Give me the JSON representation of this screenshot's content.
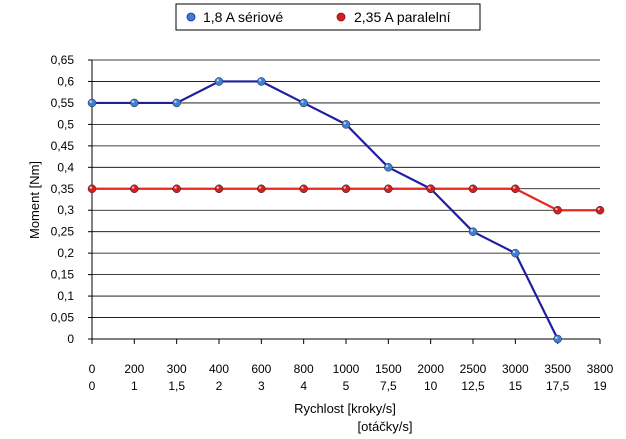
{
  "chart_data": {
    "type": "line",
    "x_labels_row1": [
      "0",
      "200",
      "300",
      "400",
      "600",
      "800",
      "1000",
      "1500",
      "2000",
      "2500",
      "3000",
      "3500",
      "3800"
    ],
    "x_labels_row2": [
      "0",
      "1",
      "1,5",
      "2",
      "3",
      "4",
      "5",
      "7,5",
      "10",
      "12,5",
      "15",
      "17,5",
      "19"
    ],
    "y_ticks": [
      "0",
      "0,05",
      "0,1",
      "0,15",
      "0,2",
      "0,25",
      "0,3",
      "0,35",
      "0,4",
      "0,45",
      "0,5",
      "0,55",
      "0,6",
      "0,65"
    ],
    "ylim": [
      0,
      0.65
    ],
    "ylabel": "Moment [Nm]",
    "xlabel": "Rychlost [kroky/s]",
    "xlabel2": "[otáčky/s]",
    "grid": true,
    "legend_position": "top-center",
    "series": [
      {
        "name": "1,8 A sériové",
        "color": "#1f1fa0",
        "marker_color": "#3d7fd6",
        "values": [
          0.55,
          0.55,
          0.55,
          0.6,
          0.6,
          0.55,
          0.5,
          0.4,
          0.35,
          0.25,
          0.2,
          0.0,
          null
        ]
      },
      {
        "name": "2,35 A paralelní",
        "color": "#e8281e",
        "marker_color": "#d22020",
        "values": [
          0.35,
          0.35,
          0.35,
          0.35,
          0.35,
          0.35,
          0.35,
          0.35,
          0.35,
          0.35,
          0.35,
          0.3,
          0.3
        ]
      }
    ]
  }
}
